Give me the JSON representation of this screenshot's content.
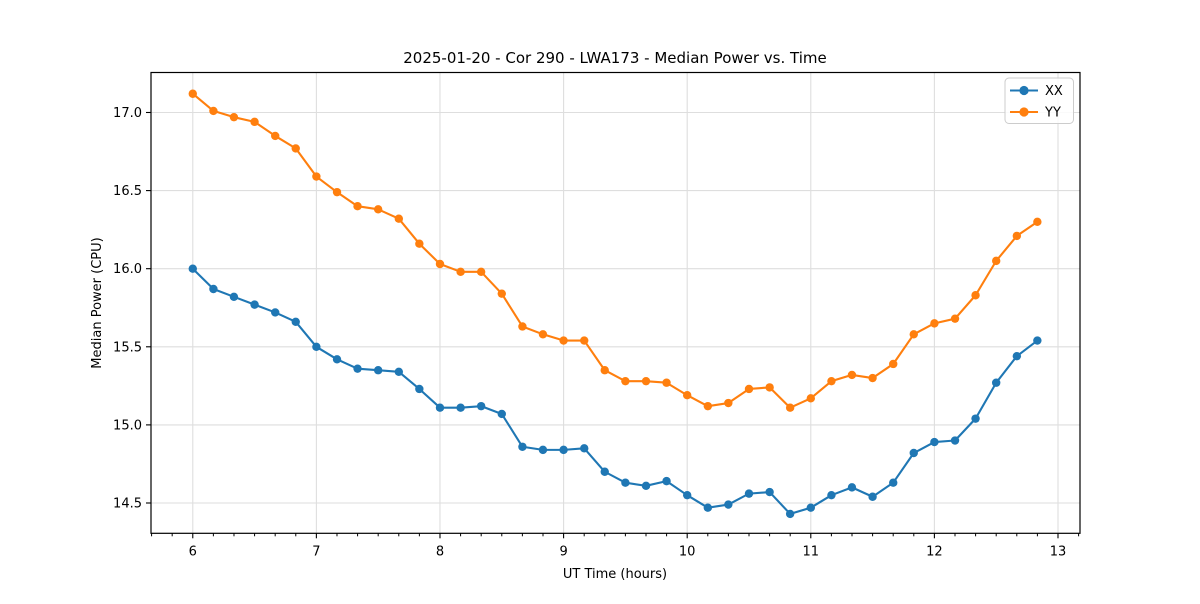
{
  "chart_data": {
    "type": "line",
    "title": "2025-01-20 - Cor 290 - LWA173 - Median Power vs. Time",
    "xlabel": "UT Time (hours)",
    "ylabel": "Median Power (CPU)",
    "xlim": [
      5.662,
      13.178
    ],
    "ylim": [
      14.306,
      17.256
    ],
    "x_ticks": [
      6,
      7,
      8,
      9,
      10,
      11,
      12,
      13
    ],
    "y_ticks": [
      14.5,
      15.0,
      15.5,
      16.0,
      16.5,
      17.0
    ],
    "x_minor_tick_step": 0.1666667,
    "grid": true,
    "legend_position": "upper right",
    "x": [
      6.0,
      6.167,
      6.333,
      6.5,
      6.667,
      6.833,
      7.0,
      7.167,
      7.333,
      7.5,
      7.667,
      7.833,
      8.0,
      8.167,
      8.333,
      8.5,
      8.667,
      8.833,
      9.0,
      9.167,
      9.333,
      9.5,
      9.667,
      9.833,
      10.0,
      10.167,
      10.333,
      10.5,
      10.667,
      10.833,
      11.0,
      11.167,
      11.333,
      11.5,
      11.667,
      11.833,
      12.0,
      12.167,
      12.333,
      12.5,
      12.667,
      12.833
    ],
    "series": [
      {
        "name": "XX",
        "color": "#1f77b4",
        "values": [
          16.0,
          15.87,
          15.82,
          15.77,
          15.72,
          15.66,
          15.5,
          15.42,
          15.36,
          15.35,
          15.34,
          15.23,
          15.11,
          15.11,
          15.12,
          15.07,
          14.86,
          14.84,
          14.84,
          14.85,
          14.7,
          14.63,
          14.61,
          14.64,
          14.55,
          14.47,
          14.49,
          14.56,
          14.57,
          14.43,
          14.47,
          14.55,
          14.6,
          14.54,
          14.63,
          14.82,
          14.89,
          14.9,
          15.04,
          15.27,
          15.44,
          15.54
        ]
      },
      {
        "name": "YY",
        "color": "#ff7f0e",
        "values": [
          17.12,
          17.01,
          16.97,
          16.94,
          16.85,
          16.77,
          16.59,
          16.49,
          16.4,
          16.38,
          16.32,
          16.16,
          16.03,
          15.98,
          15.98,
          15.84,
          15.63,
          15.58,
          15.54,
          15.54,
          15.35,
          15.28,
          15.28,
          15.27,
          15.19,
          15.12,
          15.14,
          15.23,
          15.24,
          15.11,
          15.17,
          15.28,
          15.32,
          15.3,
          15.39,
          15.58,
          15.65,
          15.68,
          15.83,
          16.05,
          16.21,
          16.3
        ]
      }
    ],
    "style": {
      "grid_color": "#dedede",
      "spine_color": "#000000",
      "background": "#ffffff",
      "legend_border": "#cccccc"
    }
  }
}
